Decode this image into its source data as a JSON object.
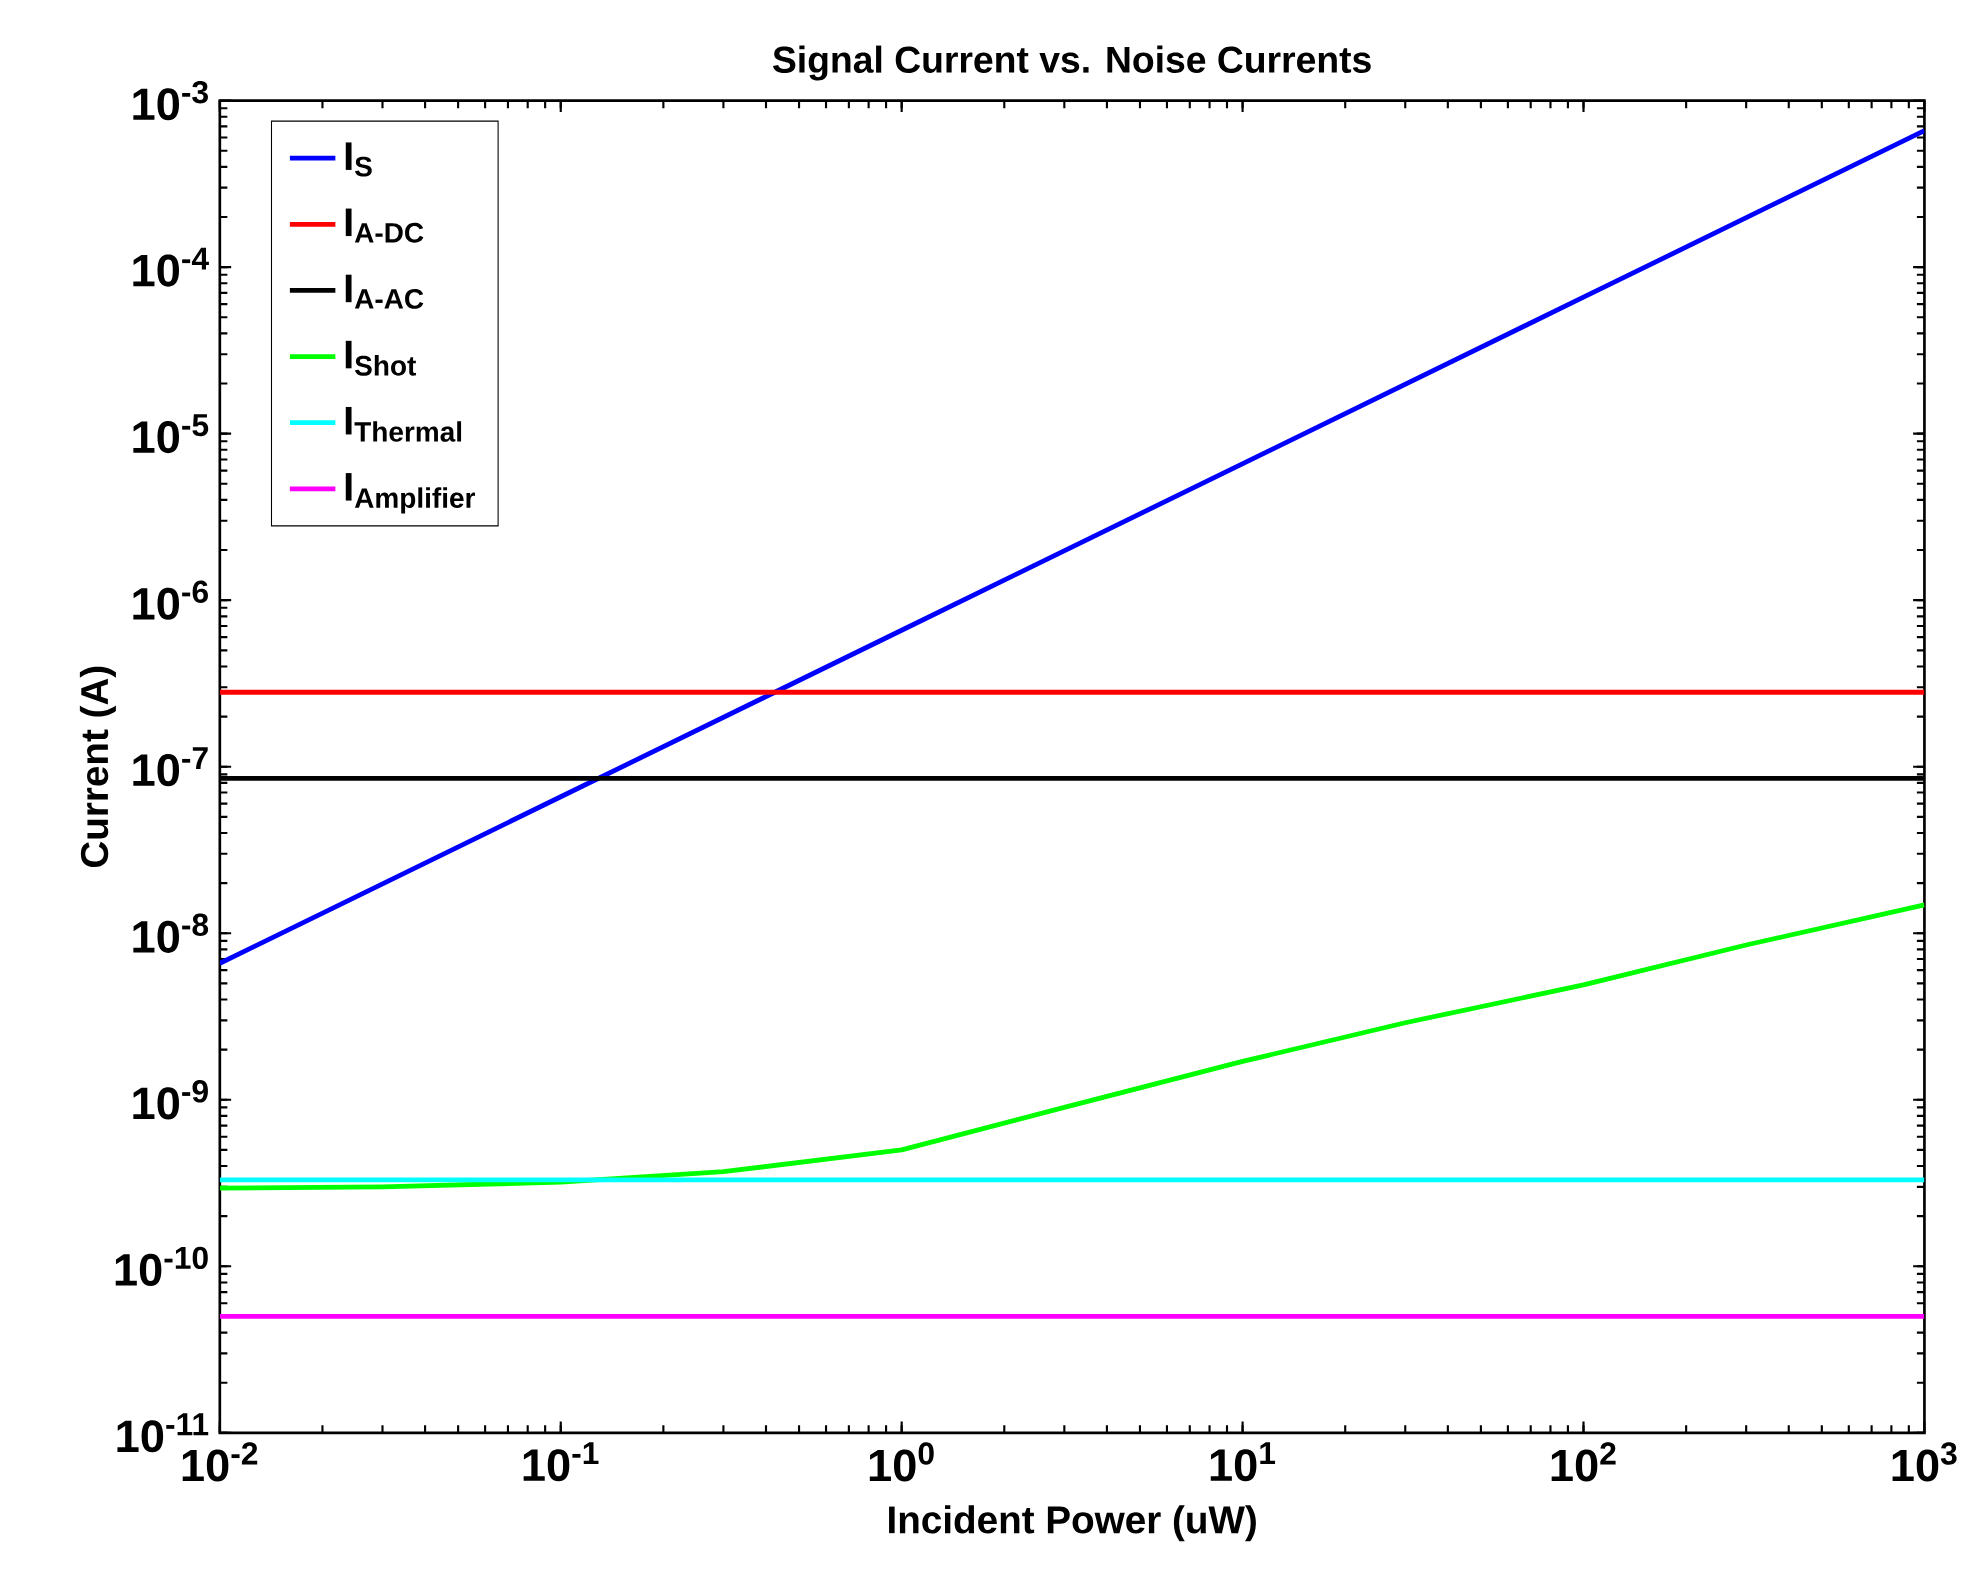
{
  "chart_data": {
    "type": "line",
    "title": "Signal Current vs. Noise Currents",
    "xlabel": "Incident Power (uW)",
    "ylabel": "Current (A)",
    "log": "xy",
    "grid": false,
    "legend": "top left",
    "marker": "none",
    "line_style": "solid",
    "xlim": [
      0.01,
      1000
    ],
    "ylim": [
      1e-11,
      0.001
    ],
    "xticks": [
      {
        "value": 0.01,
        "label": "10$^{-2}$"
      },
      {
        "value": 0.1,
        "label": "10$^{-1}$"
      },
      {
        "value": 1,
        "label": "10$^{0}$"
      },
      {
        "value": 10,
        "label": "10$^{1}$"
      },
      {
        "value": 100,
        "label": "10$^{2}$"
      },
      {
        "value": 1000,
        "label": "10$^{3}$"
      }
    ],
    "yticks": [
      {
        "value": 1e-11,
        "label": "10$^{-11}$"
      },
      {
        "value": 1e-10,
        "label": "10$^{-10}$"
      },
      {
        "value": 1e-09,
        "label": "10$^{-9}$"
      },
      {
        "value": 1e-08,
        "label": "10$^{-8}$"
      },
      {
        "value": 1e-07,
        "label": "10$^{-7}$"
      },
      {
        "value": 1e-06,
        "label": "10$^{-6}$"
      },
      {
        "value": 1e-05,
        "label": "10$^{-5}$"
      },
      {
        "value": 0.0001,
        "label": "10$^{-4}$"
      },
      {
        "value": 0.001,
        "label": "10$^{-3}$"
      }
    ],
    "series": [
      {
        "name": "\\mathbf{I}_{\\mathbf{S}}",
        "color": "#0000ff",
        "x": [
          0.01,
          0.1,
          1,
          10,
          100,
          1000
        ],
        "values": [
          6.6e-09,
          6.6e-08,
          6.6e-07,
          6.6e-06,
          6.6e-05,
          0.00066
        ]
      },
      {
        "name": "\\mathbf{I}_{\\mathbf{A\\text{-}DC}}",
        "color": "#ff0000",
        "x": [
          0.01,
          1000
        ],
        "values": [
          2.8e-07,
          2.8e-07
        ]
      },
      {
        "name": "\\mathbf{I}_{\\mathbf{A\\text{-}AC}}",
        "color": "#000000",
        "x": [
          0.01,
          1000
        ],
        "values": [
          8.5e-08,
          8.5e-08
        ]
      },
      {
        "name": "\\mathbf{I}_{\\mathbf{Shot}}",
        "color": "#00ff00",
        "x": [
          0.01,
          0.03,
          0.1,
          0.3,
          1,
          3,
          10,
          30,
          100,
          300,
          1000
        ],
        "values": [
          2.95e-10,
          3e-10,
          3.2e-10,
          3.7e-10,
          5e-10,
          9e-10,
          1.7e-09,
          2.9e-09,
          4.9e-09,
          8.5e-09,
          1.48e-08
        ]
      },
      {
        "name": "\\mathbf{I}_{\\mathbf{Thermal}}",
        "color": "#00ffff",
        "x": [
          0.01,
          1000
        ],
        "values": [
          3.3e-10,
          3.3e-10
        ]
      },
      {
        "name": "\\mathbf{I}_{\\mathbf{Amplifier}}",
        "color": "#ff00ff",
        "x": [
          0.01,
          1000
        ],
        "values": [
          5e-11,
          5e-11
        ]
      }
    ]
  }
}
